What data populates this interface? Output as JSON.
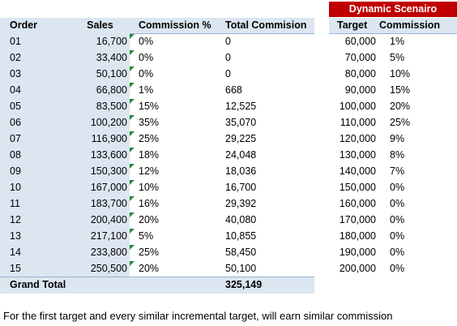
{
  "table": {
    "headers": [
      "Order",
      "Sales",
      "Commission %",
      "Total Commision"
    ],
    "rows": [
      [
        "01",
        "16,700",
        "0%",
        "0"
      ],
      [
        "02",
        "33,400",
        "0%",
        "0"
      ],
      [
        "03",
        "50,100",
        "0%",
        "0"
      ],
      [
        "04",
        "66,800",
        "1%",
        "668"
      ],
      [
        "05",
        "83,500",
        "15%",
        "12,525"
      ],
      [
        "06",
        "100,200",
        "35%",
        "35,070"
      ],
      [
        "07",
        "116,900",
        "25%",
        "29,225"
      ],
      [
        "08",
        "133,600",
        "18%",
        "24,048"
      ],
      [
        "09",
        "150,300",
        "12%",
        "18,036"
      ],
      [
        "10",
        "167,000",
        "10%",
        "16,700"
      ],
      [
        "11",
        "183,700",
        "16%",
        "29,392"
      ],
      [
        "12",
        "200,400",
        "20%",
        "40,080"
      ],
      [
        "13",
        "217,100",
        "5%",
        "10,855"
      ],
      [
        "14",
        "233,800",
        "25%",
        "58,450"
      ],
      [
        "15",
        "250,500",
        "20%",
        "50,100"
      ]
    ],
    "total": [
      "Grand Total",
      "325,149"
    ]
  },
  "scenario": {
    "title": "Dynamic Scenairo",
    "headers": [
      "Target",
      "Commission"
    ],
    "rows": [
      [
        "60,000",
        "1%"
      ],
      [
        "70,000",
        "5%"
      ],
      [
        "80,000",
        "10%"
      ],
      [
        "90,000",
        "15%"
      ],
      [
        "100,000",
        "20%"
      ],
      [
        "110,000",
        "25%"
      ],
      [
        "120,000",
        "9%"
      ],
      [
        "130,000",
        "8%"
      ],
      [
        "140,000",
        "7%"
      ],
      [
        "150,000",
        "0%"
      ],
      [
        "160,000",
        "0%"
      ],
      [
        "170,000",
        "0%"
      ],
      [
        "180,000",
        "0%"
      ],
      [
        "190,000",
        "0%"
      ],
      [
        "200,000",
        "0%"
      ]
    ]
  },
  "note": "For the first target and every similar incremental target, will earn similar commission"
}
